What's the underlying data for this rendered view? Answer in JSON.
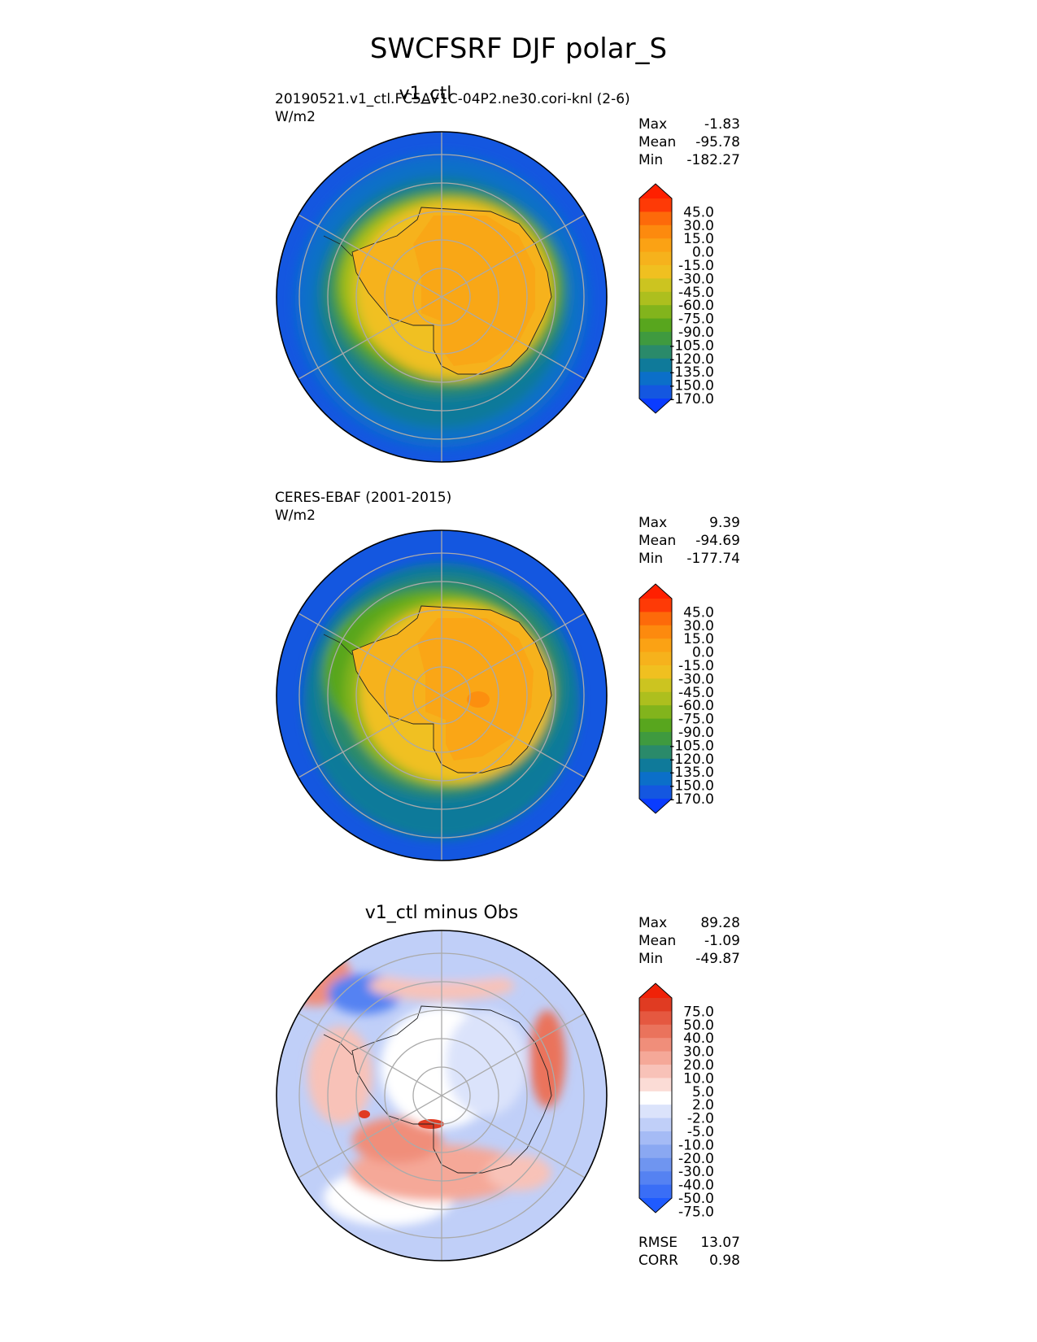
{
  "title": "SWCFSRF DJF polar_S",
  "colors": {
    "main_levels": [
      "#0a3cff",
      "#1457e0",
      "#0b6fc9",
      "#0f7a9a",
      "#2a8a6a",
      "#3f9a3f",
      "#58a61e",
      "#82b41c",
      "#adbf1e",
      "#ccc420",
      "#f0c020",
      "#f6b21c",
      "#fba214",
      "#fd8a0e",
      "#fd6a0a",
      "#fe3a06",
      "#ff2000"
    ],
    "diff_levels": [
      "#1f5bff",
      "#3a6ef6",
      "#5582f2",
      "#6f95f0",
      "#8aa8f2",
      "#a5bbf5",
      "#c0cff8",
      "#dbe3fb",
      "#ffffff",
      "#fbdcd6",
      "#f8c2b8",
      "#f5a898",
      "#f08e7a",
      "#ea735c",
      "#e55840",
      "#e03b22",
      "#f02208"
    ]
  },
  "panels": [
    {
      "title": "v1_ctl",
      "case": "20190521.v1_ctl.FC5AV1C-04P2.ne30.cori-knl (2-6)",
      "units": "W/m2",
      "stats": [
        {
          "label": "Max",
          "value": "-1.83"
        },
        {
          "label": "Mean",
          "value": "-95.78"
        },
        {
          "label": "Min",
          "value": "-182.27"
        }
      ],
      "colorbar": [
        "45.0",
        "30.0",
        "15.0",
        "0.0",
        "-15.0",
        "-30.0",
        "-45.0",
        "-60.0",
        "-75.0",
        "-90.0",
        "-105.0",
        "-120.0",
        "-135.0",
        "-150.0",
        "-170.0"
      ]
    },
    {
      "title": "",
      "case": "CERES-EBAF (2001-2015)",
      "units": "W/m2",
      "stats": [
        {
          "label": "Max",
          "value": "9.39"
        },
        {
          "label": "Mean",
          "value": "-94.69"
        },
        {
          "label": "Min",
          "value": "-177.74"
        }
      ],
      "colorbar": [
        "45.0",
        "30.0",
        "15.0",
        "0.0",
        "-15.0",
        "-30.0",
        "-45.0",
        "-60.0",
        "-75.0",
        "-90.0",
        "-105.0",
        "-120.0",
        "-135.0",
        "-150.0",
        "-170.0"
      ]
    },
    {
      "title": "v1_ctl minus Obs",
      "case": "",
      "units": "",
      "stats": [
        {
          "label": "Max",
          "value": "89.28"
        },
        {
          "label": "Mean",
          "value": "-1.09"
        },
        {
          "label": "Min",
          "value": "-49.87"
        }
      ],
      "colorbar": [
        "75.0",
        "50.0",
        "40.0",
        "30.0",
        "20.0",
        "10.0",
        "5.0",
        "2.0",
        "-2.0",
        "-5.0",
        "-10.0",
        "-20.0",
        "-30.0",
        "-40.0",
        "-50.0",
        "-75.0"
      ],
      "metrics": [
        {
          "label": "RMSE",
          "value": "13.07"
        },
        {
          "label": "CORR",
          "value": "0.98"
        }
      ]
    }
  ],
  "chart_data": [
    {
      "type": "heatmap",
      "projection": "south polar stereographic",
      "title": "v1_ctl",
      "subtitle": "20190521.v1_ctl.FC5AV1C-04P2.ne30.cori-knl (2-6)",
      "units": "W/m2",
      "max": -1.83,
      "mean": -95.78,
      "min": -182.27,
      "levels": [
        -170,
        -150,
        -135,
        -120,
        -105,
        -90,
        -75,
        -60,
        -45,
        -30,
        -15,
        0,
        15,
        30,
        45
      ],
      "colorbar_extend": "both"
    },
    {
      "type": "heatmap",
      "projection": "south polar stereographic",
      "title": "",
      "subtitle": "CERES-EBAF (2001-2015)",
      "units": "W/m2",
      "max": 9.39,
      "mean": -94.69,
      "min": -177.74,
      "levels": [
        -170,
        -150,
        -135,
        -120,
        -105,
        -90,
        -75,
        -60,
        -45,
        -30,
        -15,
        0,
        15,
        30,
        45
      ],
      "colorbar_extend": "both"
    },
    {
      "type": "heatmap",
      "projection": "south polar stereographic",
      "title": "v1_ctl minus Obs",
      "max": 89.28,
      "mean": -1.09,
      "min": -49.87,
      "rmse": 13.07,
      "corr": 0.98,
      "levels": [
        -75,
        -50,
        -40,
        -30,
        -20,
        -10,
        -5,
        -2,
        2,
        5,
        10,
        20,
        30,
        40,
        50,
        75
      ],
      "colorbar_extend": "both"
    }
  ]
}
